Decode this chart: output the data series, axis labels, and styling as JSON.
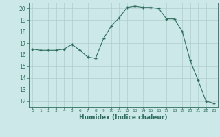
{
  "x": [
    0,
    1,
    2,
    3,
    4,
    5,
    6,
    7,
    8,
    9,
    10,
    11,
    12,
    13,
    14,
    15,
    16,
    17,
    18,
    19,
    20,
    21,
    22,
    23
  ],
  "y": [
    16.5,
    16.4,
    16.4,
    16.4,
    16.5,
    16.9,
    16.4,
    15.8,
    15.7,
    17.4,
    18.5,
    19.2,
    20.1,
    20.2,
    20.1,
    20.1,
    20.0,
    19.1,
    19.1,
    18.0,
    15.5,
    13.8,
    12.0,
    11.8
  ],
  "xlabel": "Humidex (Indice chaleur)",
  "xlim": [
    -0.5,
    23.5
  ],
  "ylim": [
    11.5,
    20.5
  ],
  "yticks": [
    12,
    13,
    14,
    15,
    16,
    17,
    18,
    19,
    20
  ],
  "xticks": [
    0,
    1,
    2,
    3,
    4,
    5,
    6,
    7,
    8,
    9,
    10,
    11,
    12,
    13,
    14,
    15,
    16,
    17,
    18,
    19,
    20,
    21,
    22,
    23
  ],
  "line_color": "#2d6e5e",
  "marker": "+",
  "bg_color": "#cce8e8",
  "grid_color": "#b0cccc",
  "font_color": "#2d6e5e",
  "spine_color": "#2d6e5e"
}
